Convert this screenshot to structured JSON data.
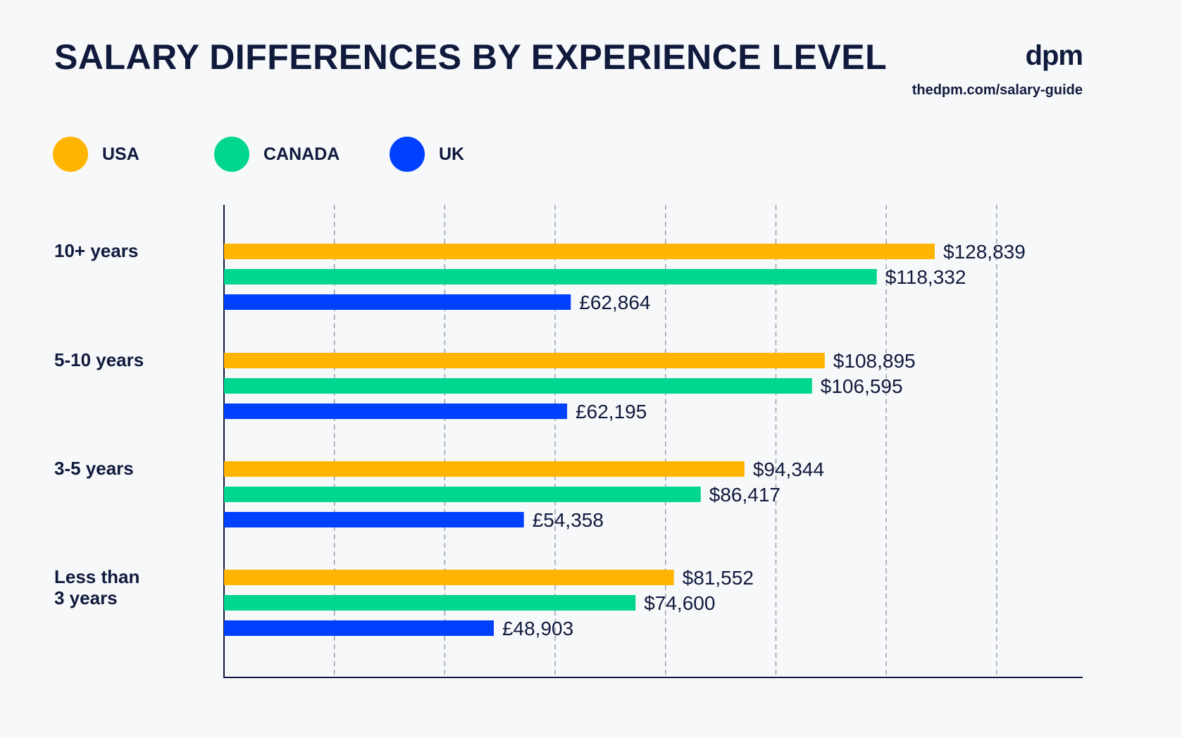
{
  "header": {
    "title": "SALARY DIFFERENCES BY EXPERIENCE LEVEL",
    "brand_logo": "dpm",
    "brand_url": "thedpm.com/salary-guide"
  },
  "legend": [
    {
      "label": "USA",
      "color": "#ffb400"
    },
    {
      "label": "CANADA",
      "color": "#00d68f"
    },
    {
      "label": "UK",
      "color": "#0040ff"
    }
  ],
  "chart_data": {
    "type": "bar",
    "orientation": "horizontal",
    "title": "SALARY DIFFERENCES BY EXPERIENCE LEVEL",
    "categories": [
      "10+ years",
      "5-10 years",
      "3-5 years",
      "Less than 3 years"
    ],
    "category_lines": [
      [
        "10+ years"
      ],
      [
        "5-10 years"
      ],
      [
        "3-5 years"
      ],
      [
        "Less than",
        "3 years"
      ]
    ],
    "series": [
      {
        "name": "USA",
        "color": "#ffb400",
        "values": [
          128839,
          108895,
          94344,
          81552
        ],
        "labels": [
          "$128,839",
          "$108,895",
          "$94,344",
          "$81,552"
        ]
      },
      {
        "name": "CANADA",
        "color": "#00d68f",
        "values": [
          118332,
          106595,
          86417,
          74600
        ],
        "labels": [
          "$118,332",
          "$106,595",
          "$86,417",
          "$74,600"
        ]
      },
      {
        "name": "UK",
        "color": "#0040ff",
        "values": [
          62864,
          62195,
          54358,
          48903
        ],
        "labels": [
          "£62,864",
          "£62,195",
          "£54,358",
          "£48,903"
        ]
      }
    ],
    "xlabel": "",
    "ylabel": "",
    "grid": true,
    "legend_position": "top-left"
  }
}
